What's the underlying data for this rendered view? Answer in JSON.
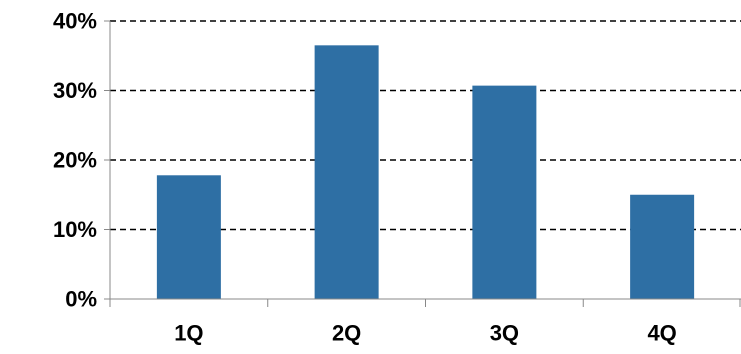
{
  "chart_data": {
    "type": "bar",
    "categories": [
      "1Q",
      "2Q",
      "3Q",
      "4Q"
    ],
    "values": [
      17.8,
      36.5,
      30.7,
      15.0
    ],
    "ylim": [
      0,
      40
    ],
    "yticks": [
      0,
      10,
      20,
      30,
      40
    ],
    "ytick_labels": [
      "0%",
      "10%",
      "20%",
      "30%",
      "40%"
    ],
    "grid": true,
    "grid_style": "dashed",
    "bar_color": "#2E6FA4",
    "title": "",
    "xlabel": "",
    "ylabel": ""
  }
}
